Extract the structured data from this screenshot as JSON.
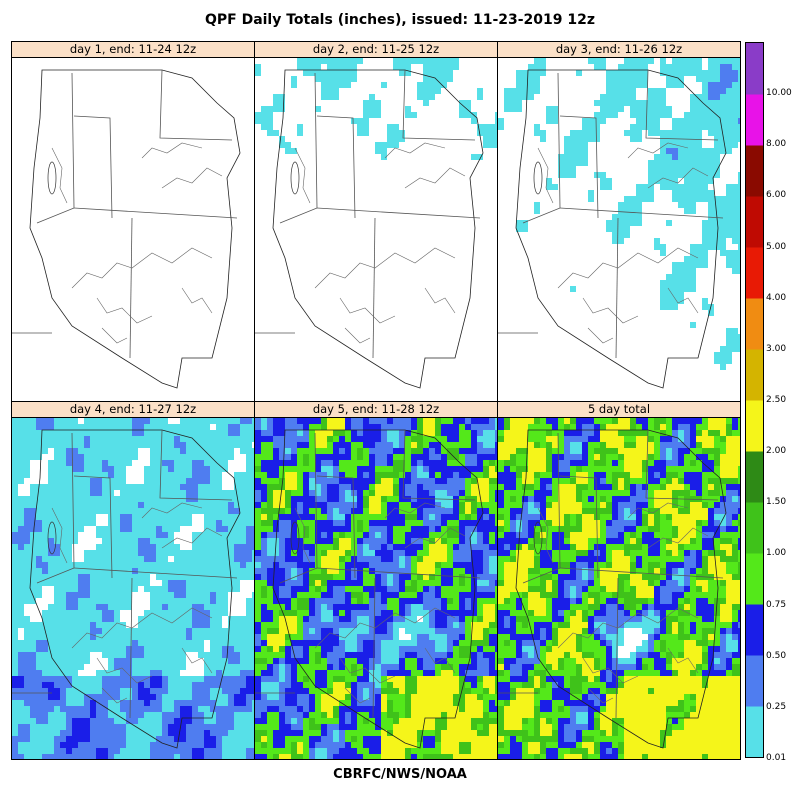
{
  "title": "QPF Daily Totals (inches),  issued: 11-23-2019 12z",
  "footer": "CBRFC/NWS/NOAA",
  "panels": [
    {
      "label": "day 1, end: 11-24 12z",
      "intensity": 0.0
    },
    {
      "label": "day 2, end: 11-25 12z",
      "intensity": 0.12
    },
    {
      "label": "day 3, end: 11-26 12z",
      "intensity": 0.35
    },
    {
      "label": "day 4, end: 11-27 12z",
      "intensity": 0.42
    },
    {
      "label": "day 5, end: 11-28 12z",
      "intensity": 0.9
    },
    {
      "label": "5 day total",
      "intensity": 1.0
    }
  ],
  "colorbar": {
    "levels": [
      {
        "value": "0.01",
        "color": "#57e0e8"
      },
      {
        "value": "0.25",
        "color": "#4f7df0"
      },
      {
        "value": "0.50",
        "color": "#1a1ee8"
      },
      {
        "value": "0.75",
        "color": "#54e81a"
      },
      {
        "value": "1.00",
        "color": "#3fc21a"
      },
      {
        "value": "1.50",
        "color": "#2e8a16"
      },
      {
        "value": "2.00",
        "color": "#f5f51a"
      },
      {
        "value": "2.50",
        "color": "#d4b400"
      },
      {
        "value": "3.00",
        "color": "#f08c12"
      },
      {
        "value": "4.00",
        "color": "#e81a05"
      },
      {
        "value": "5.00",
        "color": "#bf0a02"
      },
      {
        "value": "6.00",
        "color": "#8a0a00"
      },
      {
        "value": "8.00",
        "color": "#e812e8"
      },
      {
        "value": "10.00",
        "color": "#8a3cc8"
      }
    ]
  }
}
